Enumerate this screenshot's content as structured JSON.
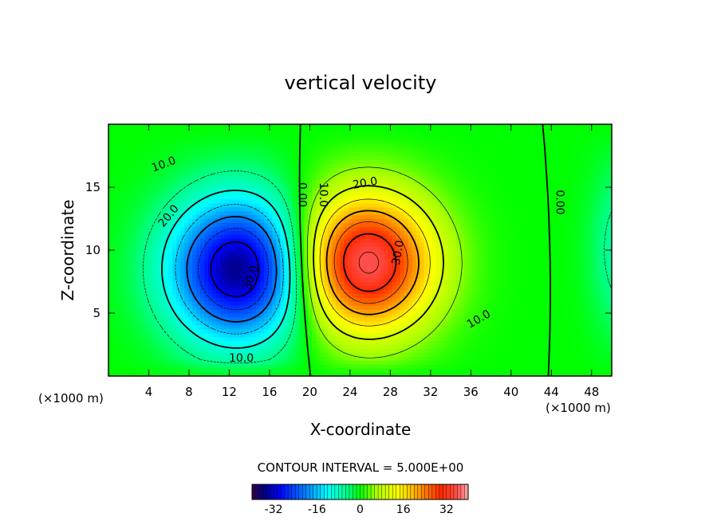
{
  "chart_data": {
    "type": "heatmap",
    "title": "vertical velocity",
    "xlabel": "X-coordinate",
    "ylabel": "Z-coordinate",
    "x_unit_left": "(×1000 m)",
    "x_unit_right": "(×1000 m)",
    "x_ticks": [
      "4",
      "8",
      "12",
      "16",
      "20",
      "24",
      "28",
      "32",
      "36",
      "40",
      "44",
      "48"
    ],
    "y_ticks": [
      "5",
      "10",
      "15"
    ],
    "xlim": [
      0,
      50
    ],
    "ylim": [
      0,
      20
    ],
    "contour_interval_text": "CONTOUR INTERVAL = 5.000E+00",
    "contour_interval": 5,
    "colorbar": {
      "range": [
        -40,
        40
      ],
      "ticks": [
        "-32",
        "-16",
        "0",
        "16",
        "32"
      ]
    },
    "contour_labels": [
      {
        "text": "10.0",
        "x": 5.5,
        "y": 16.8,
        "rotate": -20
      },
      {
        "text": "20.0",
        "x": 6.0,
        "y": 12.7,
        "rotate": -50
      },
      {
        "text": "30.0",
        "x": 14.2,
        "y": 7.8,
        "rotate": -70
      },
      {
        "text": "10.0",
        "x": 13.2,
        "y": 1.4,
        "rotate": 0
      },
      {
        "text": "0.00",
        "x": 19.2,
        "y": 14.4,
        "rotate": 90
      },
      {
        "text": "10.0",
        "x": 21.3,
        "y": 14.4,
        "rotate": 90
      },
      {
        "text": "20.0",
        "x": 25.5,
        "y": 15.3,
        "rotate": -10
      },
      {
        "text": "30.0",
        "x": 28.8,
        "y": 9.8,
        "rotate": -80
      },
      {
        "text": "10.0",
        "x": 36.8,
        "y": 4.5,
        "rotate": -30
      },
      {
        "text": "0.00",
        "x": 44.8,
        "y": 13.8,
        "rotate": 90
      }
    ],
    "features": {
      "min_center": {
        "x": 13,
        "y": 8.5,
        "value": -35
      },
      "max_center": {
        "x": 25.5,
        "y": 9.0,
        "value": 35
      }
    }
  }
}
